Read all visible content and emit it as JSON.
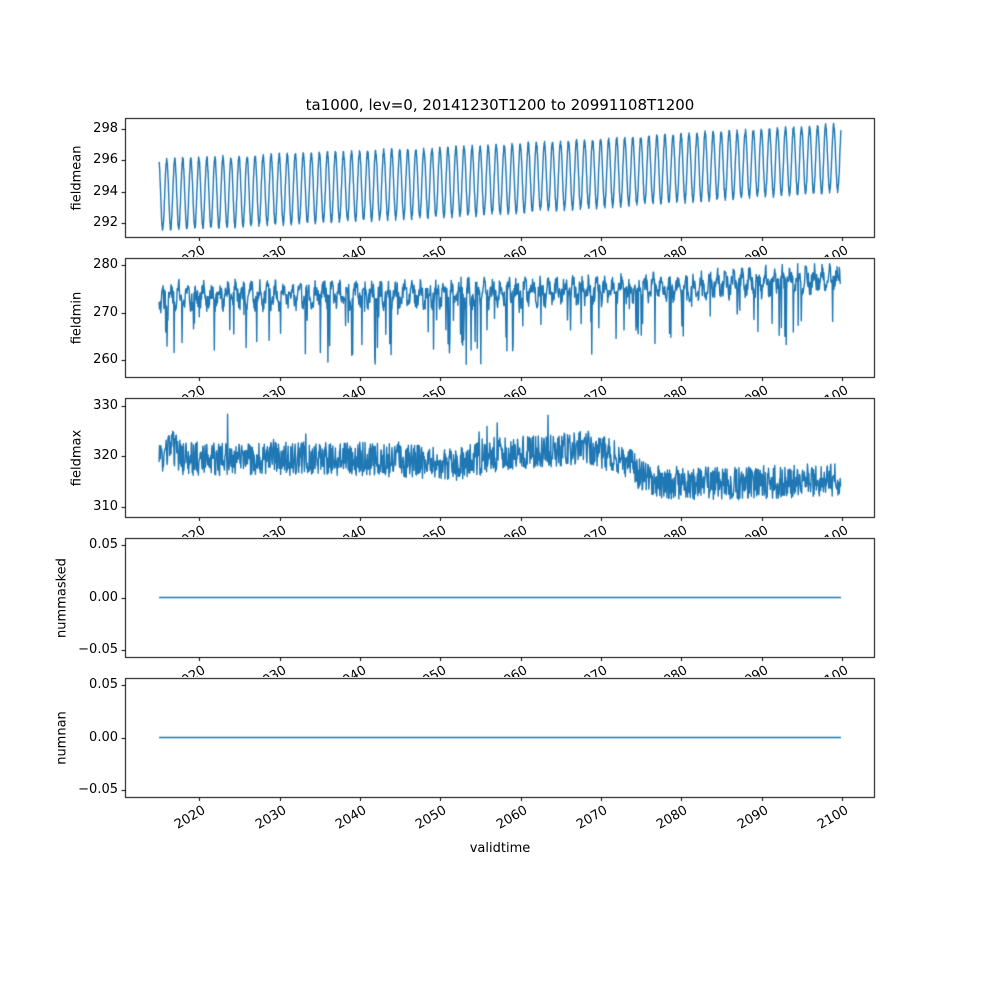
{
  "title": "ta1000, lev=0, 20141230T1200 to 20991108T1200",
  "colors": {
    "series": "#1f77b4",
    "axes": "#000000",
    "background": "#ffffff"
  },
  "x_axis": {
    "label": "validtime",
    "xlim": [
      2010.76,
      2104.09
    ],
    "ticks": [
      2020,
      2030,
      2040,
      2050,
      2060,
      2070,
      2080,
      2090,
      2100
    ],
    "tick_labels": [
      "2020",
      "2030",
      "2040",
      "2050",
      "2060",
      "2070",
      "2080",
      "2090",
      "2100"
    ]
  },
  "chart_data": [
    {
      "type": "line",
      "ylabel": "fieldmean",
      "ylim": [
        291.1,
        298.7
      ],
      "yticks": [
        292,
        294,
        296,
        298
      ],
      "ytick_labels": [
        "292",
        "294",
        "296",
        "298"
      ],
      "grid": false,
      "series": [
        {
          "name": "fieldmean",
          "color": "#1f77b4",
          "x_start": 2015.0,
          "x_end": 2099.85,
          "synthesis": {
            "kind": "seasonal",
            "dt": 0.02,
            "seed": 11,
            "mean_keyframes": [
              [
                2015,
                293.8
              ],
              [
                2055,
                294.7
              ],
              [
                2100,
                296.15
              ]
            ],
            "amplitude_keyframes": [
              [
                2015,
                2.2
              ],
              [
                2100,
                2.1
              ]
            ],
            "period": 1.0,
            "phase": 2014.7,
            "noise": 0.15
          }
        }
      ]
    },
    {
      "type": "line",
      "ylabel": "fieldmin",
      "ylim": [
        256.5,
        281.5
      ],
      "yticks": [
        260,
        270,
        280
      ],
      "ytick_labels": [
        "260",
        "270",
        "280"
      ],
      "grid": false,
      "series": [
        {
          "name": "fieldmin",
          "color": "#1f77b4",
          "x_start": 2015.0,
          "x_end": 2099.85,
          "synthesis": {
            "kind": "noisy_dips",
            "dt": 0.055,
            "seed": 22,
            "base_keyframes": [
              [
                2015,
                274
              ],
              [
                2050,
                274.5
              ],
              [
                2075,
                275.5
              ],
              [
                2100,
                278
              ]
            ],
            "seasonal_amp": 1.6,
            "jitter": 2.0,
            "dip_prob": 0.055,
            "dip_min": 3,
            "dip_max": 13,
            "ceil": 280.3
          }
        }
      ]
    },
    {
      "type": "line",
      "ylabel": "fieldmax",
      "ylim": [
        308.0,
        331.5
      ],
      "yticks": [
        310,
        320,
        330
      ],
      "ytick_labels": [
        "310",
        "320",
        "330"
      ],
      "grid": false,
      "series": [
        {
          "name": "fieldmax",
          "color": "#1f77b4",
          "x_start": 2015.0,
          "x_end": 2099.85,
          "synthesis": {
            "kind": "noisy_spikes",
            "dt": 0.055,
            "seed": 33,
            "base_keyframes": [
              [
                2015,
                318.5
              ],
              [
                2016.5,
                322
              ],
              [
                2018,
                319.5
              ],
              [
                2040,
                319.5
              ],
              [
                2052,
                318.5
              ],
              [
                2058,
                320.5
              ],
              [
                2064,
                321
              ],
              [
                2068,
                322
              ],
              [
                2073,
                319
              ],
              [
                2076,
                315
              ],
              [
                2085,
                314.5
              ],
              [
                2100,
                315.5
              ]
            ],
            "jitter": 3.3,
            "spike_prob": 0.02,
            "spike_max": 6,
            "spike_base_min": 318,
            "cap": 330.8
          }
        }
      ]
    },
    {
      "type": "line",
      "ylabel": "nummasked",
      "ylim": [
        -0.057,
        0.057
      ],
      "yticks": [
        -0.05,
        0,
        0.05
      ],
      "ytick_labels": [
        "−0.05",
        "0.00",
        "0.05"
      ],
      "grid": false,
      "series": [
        {
          "name": "nummasked",
          "color": "#1f77b4",
          "x_start": 2015.0,
          "x_end": 2099.85,
          "synthesis": {
            "kind": "constant",
            "value": 0.0
          }
        }
      ]
    },
    {
      "type": "line",
      "ylabel": "numnan",
      "ylim": [
        -0.057,
        0.057
      ],
      "yticks": [
        -0.05,
        0,
        0.05
      ],
      "ytick_labels": [
        "−0.05",
        "0.00",
        "0.05"
      ],
      "grid": false,
      "series": [
        {
          "name": "numnan",
          "color": "#1f77b4",
          "x_start": 2015.0,
          "x_end": 2099.85,
          "synthesis": {
            "kind": "constant",
            "value": 0.0
          }
        }
      ]
    }
  ]
}
